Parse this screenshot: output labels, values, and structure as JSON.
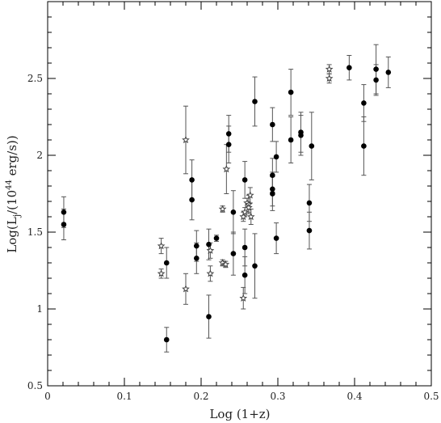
{
  "chart_data": {
    "type": "scatter",
    "title": "",
    "xlabel": "Log (1+z)",
    "ylabel_prefix": "Log(L",
    "ylabel_sub": "j",
    "ylabel_mid": "/(10",
    "ylabel_sup": "44",
    "ylabel_suffix": " erg/s))",
    "xlim": [
      0,
      0.5
    ],
    "ylim": [
      0.5,
      3.0
    ],
    "x_ticks": [
      0,
      0.1,
      0.2,
      0.3,
      0.4,
      0.5
    ],
    "x_tick_labels": [
      "0",
      "0.1",
      "0.2",
      "0.3",
      "0.4",
      "0.5"
    ],
    "y_ticks": [
      0.5,
      1,
      1.5,
      2,
      2.5
    ],
    "y_tick_labels": [
      "0.5",
      "1",
      "1.5",
      "2",
      "2.5"
    ],
    "grid": false,
    "legend": "none",
    "series": [
      {
        "marker": "filled-circle",
        "color": "#000000",
        "points": [
          {
            "x": 0.021,
            "y": 1.63,
            "err": 0.1
          },
          {
            "x": 0.021,
            "y": 1.55,
            "err": 0.1
          },
          {
            "x": 0.155,
            "y": 1.3,
            "err": 0.1
          },
          {
            "x": 0.155,
            "y": 0.8,
            "err": 0.08
          },
          {
            "x": 0.188,
            "y": 1.84,
            "err": 0.13
          },
          {
            "x": 0.188,
            "y": 1.71,
            "err": 0.13
          },
          {
            "x": 0.194,
            "y": 1.41,
            "err": 0.1
          },
          {
            "x": 0.194,
            "y": 1.33,
            "err": 0.1
          },
          {
            "x": 0.21,
            "y": 1.42,
            "err": 0.1
          },
          {
            "x": 0.21,
            "y": 0.95,
            "err": 0.14
          },
          {
            "x": 0.22,
            "y": 1.46,
            "err": 0.02
          },
          {
            "x": 0.236,
            "y": 2.14,
            "err": 0.12
          },
          {
            "x": 0.236,
            "y": 2.07,
            "err": 0.12
          },
          {
            "x": 0.242,
            "y": 1.63,
            "err": 0.14
          },
          {
            "x": 0.242,
            "y": 1.36,
            "err": 0.14
          },
          {
            "x": 0.257,
            "y": 1.84,
            "err": 0.12
          },
          {
            "x": 0.257,
            "y": 1.4,
            "err": 0.12
          },
          {
            "x": 0.257,
            "y": 1.22,
            "err": 0.12
          },
          {
            "x": 0.27,
            "y": 2.35,
            "err": 0.16
          },
          {
            "x": 0.27,
            "y": 1.28,
            "err": 0.21
          },
          {
            "x": 0.293,
            "y": 2.2,
            "err": 0.11
          },
          {
            "x": 0.293,
            "y": 1.87,
            "err": 0.11
          },
          {
            "x": 0.293,
            "y": 1.78,
            "err": 0.11
          },
          {
            "x": 0.293,
            "y": 1.75,
            "err": 0.11
          },
          {
            "x": 0.298,
            "y": 1.99,
            "err": 0.1
          },
          {
            "x": 0.298,
            "y": 1.46,
            "err": 0.1
          },
          {
            "x": 0.317,
            "y": 2.41,
            "err": 0.15
          },
          {
            "x": 0.317,
            "y": 2.1,
            "err": 0.15
          },
          {
            "x": 0.33,
            "y": 2.15,
            "err": 0.13
          },
          {
            "x": 0.33,
            "y": 2.13,
            "err": 0.13
          },
          {
            "x": 0.341,
            "y": 1.69,
            "err": 0.12
          },
          {
            "x": 0.341,
            "y": 1.51,
            "err": 0.12
          },
          {
            "x": 0.344,
            "y": 2.06,
            "err": 0.22
          },
          {
            "x": 0.393,
            "y": 2.57,
            "err": 0.08
          },
          {
            "x": 0.412,
            "y": 2.34,
            "err": 0.12
          },
          {
            "x": 0.412,
            "y": 2.06,
            "err": 0.19
          },
          {
            "x": 0.428,
            "y": 2.56,
            "err": 0.16
          },
          {
            "x": 0.428,
            "y": 2.49,
            "err": 0.1
          },
          {
            "x": 0.444,
            "y": 2.54,
            "err": 0.1
          }
        ]
      },
      {
        "marker": "open-star",
        "color": "#444444",
        "points": [
          {
            "x": 0.148,
            "y": 1.41,
            "err": 0.05
          },
          {
            "x": 0.148,
            "y": 1.23,
            "err": 0.03
          },
          {
            "x": 0.18,
            "y": 2.1,
            "err": 0.22
          },
          {
            "x": 0.18,
            "y": 1.13,
            "err": 0.1
          },
          {
            "x": 0.212,
            "y": 1.38,
            "err": 0.05
          },
          {
            "x": 0.212,
            "y": 1.23,
            "err": 0.05
          },
          {
            "x": 0.228,
            "y": 1.65,
            "err": 0.02
          },
          {
            "x": 0.228,
            "y": 1.3,
            "err": 0.02
          },
          {
            "x": 0.232,
            "y": 1.29,
            "err": 0.02
          },
          {
            "x": 0.233,
            "y": 1.91,
            "err": 0.16
          },
          {
            "x": 0.255,
            "y": 1.6,
            "err": 0.03
          },
          {
            "x": 0.257,
            "y": 1.63,
            "err": 0.03
          },
          {
            "x": 0.255,
            "y": 1.07,
            "err": 0.07
          },
          {
            "x": 0.26,
            "y": 1.69,
            "err": 0.03
          },
          {
            "x": 0.262,
            "y": 1.68,
            "err": 0.06
          },
          {
            "x": 0.262,
            "y": 1.66,
            "err": 0.03
          },
          {
            "x": 0.264,
            "y": 1.74,
            "err": 0.05
          },
          {
            "x": 0.265,
            "y": 1.6,
            "err": 0.05
          },
          {
            "x": 0.367,
            "y": 2.56,
            "err": 0.03
          },
          {
            "x": 0.367,
            "y": 2.5,
            "err": 0.03
          }
        ]
      }
    ]
  }
}
